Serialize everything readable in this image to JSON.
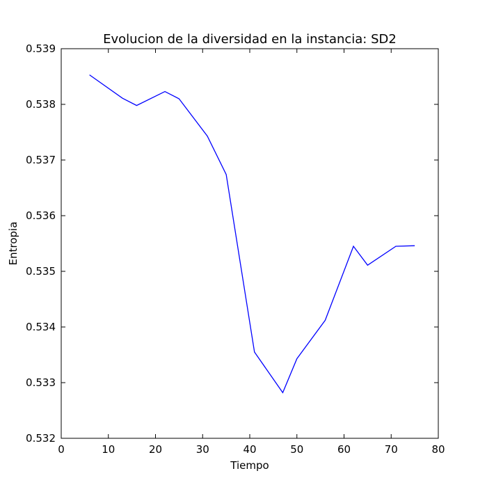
{
  "chart_data": {
    "type": "line",
    "title": "Evolucion de la diversidad en la instancia: SD2",
    "xlabel": "Tiempo",
    "ylabel": "Entropia",
    "xlim": [
      0,
      80
    ],
    "ylim": [
      0.532,
      0.539
    ],
    "xticks": [
      "0",
      "10",
      "20",
      "30",
      "40",
      "50",
      "60",
      "70",
      "80"
    ],
    "yticks": [
      "0.532",
      "0.533",
      "0.534",
      "0.535",
      "0.536",
      "0.537",
      "0.538",
      "0.539"
    ],
    "grid": false,
    "legend": false,
    "series": [
      {
        "color": "#0000ff",
        "x": [
          6,
          13,
          16,
          22,
          25,
          31,
          35,
          41,
          47,
          50,
          56,
          62,
          65,
          71,
          75
        ],
        "y": [
          0.53853,
          0.53811,
          0.53798,
          0.53823,
          0.5381,
          0.53743,
          0.53674,
          0.53355,
          0.53282,
          0.53343,
          0.53412,
          0.53545,
          0.53511,
          0.53545,
          0.53546
        ]
      }
    ]
  }
}
